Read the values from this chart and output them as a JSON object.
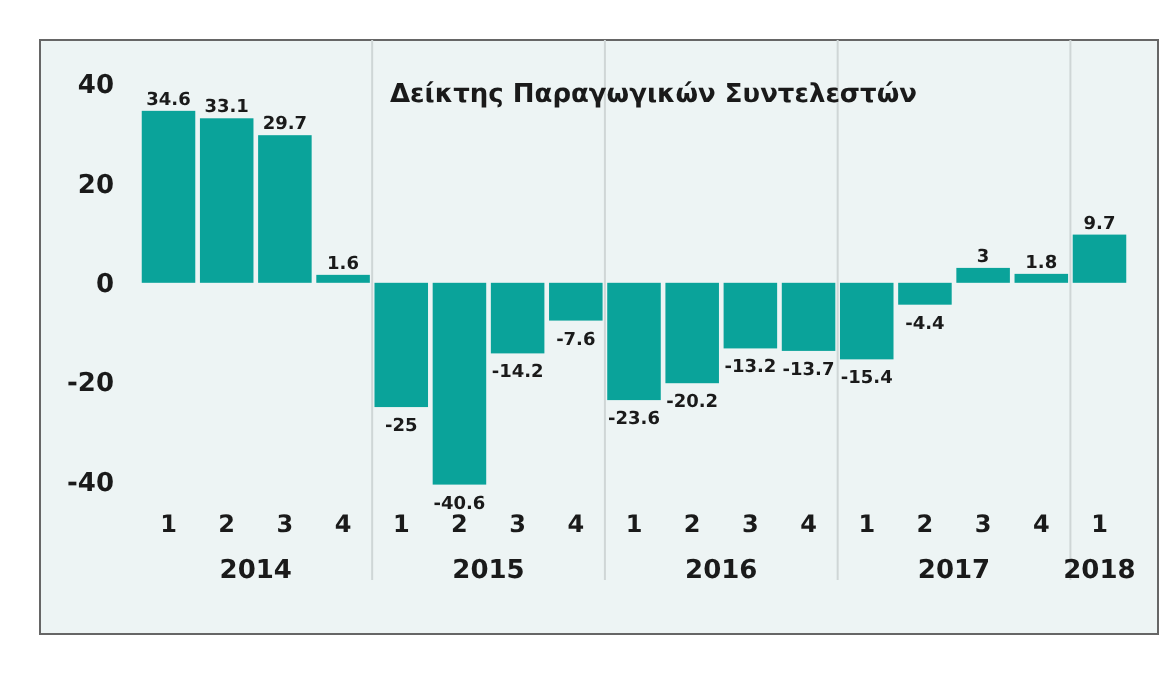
{
  "chart_data": {
    "type": "bar",
    "title": "Δείκτης Παραγωγικών Συντελεστών",
    "categories": [
      "1",
      "2",
      "3",
      "4",
      "1",
      "2",
      "3",
      "4",
      "1",
      "2",
      "3",
      "4",
      "1",
      "2",
      "3",
      "4",
      "1"
    ],
    "values": [
      34.6,
      33.1,
      29.7,
      1.6,
      -25,
      -40.6,
      -14.2,
      -7.6,
      -23.6,
      -20.2,
      -13.2,
      -13.7,
      -15.4,
      -4.4,
      3,
      1.8,
      9.7
    ],
    "color": "#0aa39a",
    "ylim": [
      -40.6,
      40
    ],
    "yticks": [
      -40,
      -20,
      0,
      20,
      40
    ],
    "data_labels": true,
    "annotations": [
      "2014",
      "2015",
      "2016",
      "2017",
      "2018"
    ]
  }
}
